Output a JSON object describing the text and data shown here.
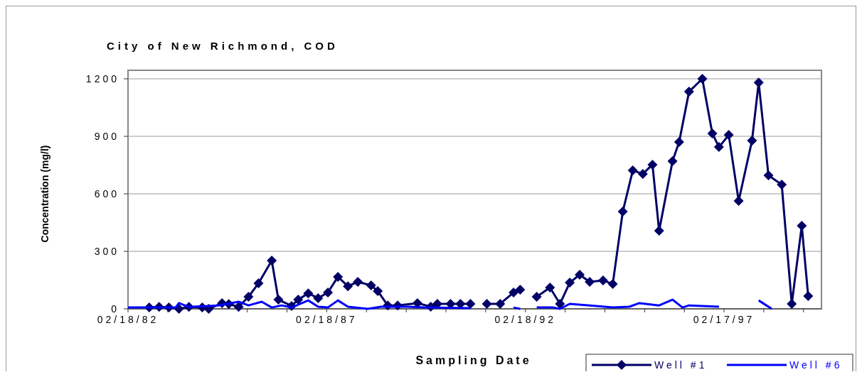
{
  "chart_data": {
    "type": "line",
    "title": "City of New Richmond, COD",
    "xlabel": "Sampling Date",
    "ylabel": "Concentration (mg/l)",
    "xlim": [
      "1982-02-18",
      "1999-08"
    ],
    "xticks": [
      {
        "value": "1982-02-18",
        "label": "02/18/82"
      },
      {
        "value": "1983-02-18",
        "label": null
      },
      {
        "value": "1984-02-18",
        "label": null
      },
      {
        "value": "1985-02-18",
        "label": null
      },
      {
        "value": "1986-02-18",
        "label": null
      },
      {
        "value": "1987-02-18",
        "label": "02/18/87"
      },
      {
        "value": "1988-02-18",
        "label": null
      },
      {
        "value": "1989-02-18",
        "label": null
      },
      {
        "value": "1990-02-18",
        "label": null
      },
      {
        "value": "1991-02-18",
        "label": null
      },
      {
        "value": "1992-02-18",
        "label": "02/18/92"
      },
      {
        "value": "1993-02-18",
        "label": null
      },
      {
        "value": "1994-02-18",
        "label": null
      },
      {
        "value": "1995-02-18",
        "label": null
      },
      {
        "value": "1996-02-18",
        "label": null
      },
      {
        "value": "1997-02-17",
        "label": "02/17/97"
      },
      {
        "value": "1998-02-17",
        "label": null
      },
      {
        "value": "1999-02-17",
        "label": null
      }
    ],
    "ylim": [
      0,
      1200
    ],
    "yticks": [
      0,
      300,
      600,
      900,
      1200
    ],
    "grid": "y",
    "legend": "bottom right",
    "series": [
      {
        "name": "Well #1",
        "color": "#000066",
        "marker": "diamond",
        "x": [
          "1982-09",
          "1982-12",
          "1983-03",
          "1983-06",
          "1983-09",
          "1984-01",
          "1984-03",
          "1984-07",
          "1984-09",
          "1984-12",
          "1985-03",
          "1985-06",
          "1985-10",
          "1985-12",
          "1986-04",
          "1986-06",
          "1986-09",
          "1986-12",
          "1987-03",
          "1987-06",
          "1987-09",
          "1987-12",
          "1988-04",
          "1988-06",
          "1988-09",
          "1988-12",
          "1989-06",
          "1989-10",
          "1989-12",
          "1990-04",
          "1990-07",
          "1990-10",
          "1991-02",
          "1991-03",
          "1991-07",
          "1991-11",
          "1992-01",
          "1992-04",
          "1992-06",
          "1992-10",
          "1993-01",
          "1993-04",
          "1993-07",
          "1993-10",
          "1994-02",
          "1994-05",
          "1994-08",
          "1994-11",
          "1995-02",
          "1995-05",
          "1995-07",
          "1995-11",
          "1996-01",
          "1996-04",
          "1996-08",
          "1996-11",
          "1997-01",
          "1997-04",
          "1997-07",
          "1997-11",
          "1998-01",
          "1998-04",
          "1998-08",
          "1998-11",
          "1999-02",
          "1999-04"
        ],
        "values": [
          7,
          10,
          7,
          0,
          10,
          7,
          0,
          30,
          25,
          10,
          63,
          133,
          252,
          48,
          15,
          48,
          81,
          56,
          85,
          167,
          118,
          141,
          122,
          93,
          18,
          18,
          30,
          11,
          26,
          26,
          26,
          26,
          null,
          26,
          26,
          85,
          100,
          null,
          63,
          111,
          26,
          137,
          178,
          141,
          148,
          130,
          507,
          722,
          704,
          752,
          407,
          770,
          870,
          1133,
          1200,
          915,
          844,
          907,
          563,
          878,
          1181,
          696,
          648,
          26,
          433,
          67
        ]
      },
      {
        "name": "Well #6",
        "color": "#0000ff",
        "marker": "none",
        "x": [
          "1982-02-18",
          "1983-05",
          "1983-06",
          "1983-09",
          "1984-06",
          "1984-12",
          "1985-03",
          "1985-07",
          "1985-10",
          "1986-01",
          "1986-04",
          "1986-09",
          "1986-12",
          "1987-03",
          "1987-06",
          "1987-09",
          "1988-03",
          "1988-07",
          "1989-03",
          "1989-08",
          "1990-10",
          "1991-07",
          "1991-11",
          "1992-01",
          "1992-04",
          "1992-06",
          "1992-11",
          "1993-01",
          "1993-04",
          "1993-10",
          "1994-05",
          "1994-10",
          "1995-01",
          "1995-07",
          "1995-11",
          "1996-02",
          "1996-04",
          "1997-01",
          "1997-07",
          "1998-01",
          "1998-05"
        ],
        "values": [
          7,
          7,
          30,
          10,
          18,
          37,
          18,
          37,
          7,
          18,
          7,
          44,
          11,
          7,
          44,
          11,
          0,
          11,
          11,
          7,
          4,
          null,
          7,
          0,
          null,
          7,
          7,
          0,
          26,
          18,
          7,
          11,
          30,
          18,
          48,
          7,
          18,
          11,
          null,
          44,
          0
        ]
      }
    ]
  }
}
